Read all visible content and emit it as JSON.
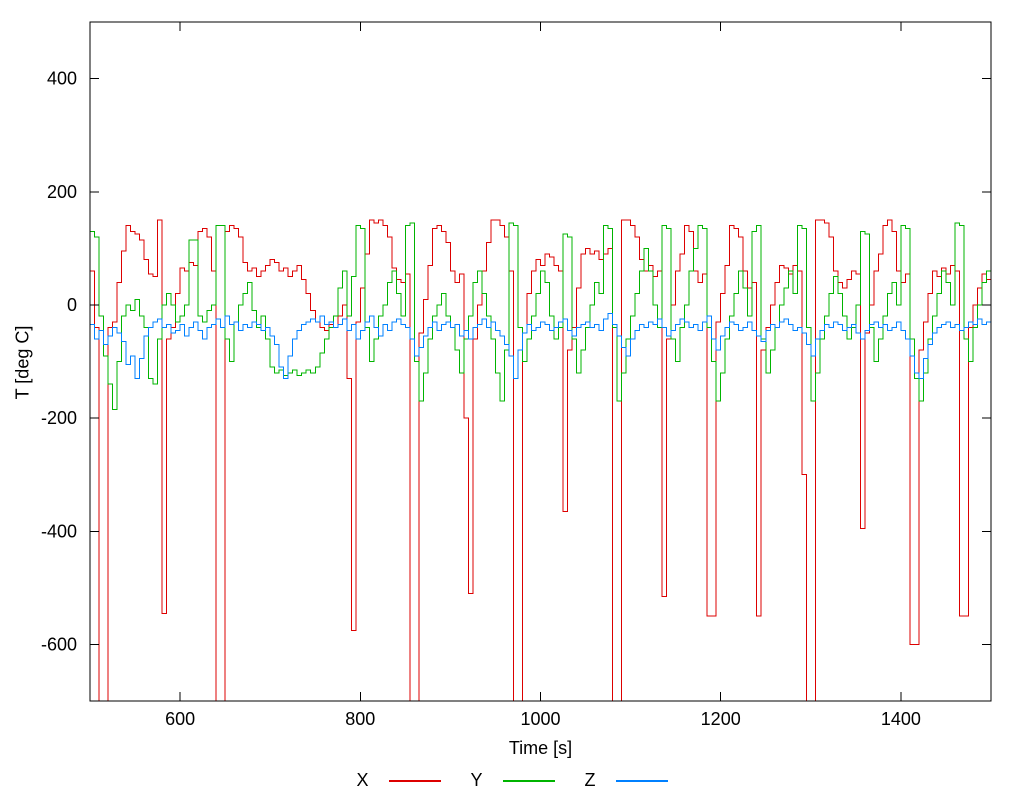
{
  "window": {
    "background": "#ffffff"
  },
  "chart_data": {
    "type": "line",
    "line_style": "steps",
    "title": "",
    "xlabel": "Time [s]",
    "ylabel": "T [deg C]",
    "xlim": [
      500,
      1500
    ],
    "ylim": [
      -700,
      500
    ],
    "xticks": [
      600,
      800,
      1000,
      1200,
      1400
    ],
    "yticks": [
      -600,
      -400,
      -200,
      0,
      200,
      400
    ],
    "grid": false,
    "legend_position": "bottom-center",
    "axis_color": "#000000",
    "text_color": "#000000",
    "clip_note": "values of -750 represent spikes clipped below the plot bottom",
    "series": [
      {
        "name": "X",
        "color": "#dd0000",
        "t0": 500,
        "dt": 5,
        "values": [
          60,
          -40,
          -750,
          -750,
          -40,
          -30,
          40,
          95,
          140,
          130,
          125,
          115,
          80,
          55,
          50,
          150,
          -545,
          -60,
          -40,
          20,
          65,
          60,
          75,
          70,
          130,
          135,
          120,
          60,
          -750,
          -750,
          130,
          140,
          135,
          120,
          75,
          60,
          65,
          50,
          60,
          70,
          80,
          75,
          60,
          65,
          50,
          60,
          70,
          45,
          20,
          -10,
          -30,
          -40,
          -45,
          -35,
          -40,
          -20,
          0,
          -130,
          -575,
          -30,
          30,
          90,
          150,
          145,
          150,
          140,
          120,
          65,
          45,
          40,
          55,
          -750,
          -750,
          -50,
          10,
          70,
          135,
          140,
          130,
          110,
          60,
          40,
          55,
          -200,
          -510,
          -60,
          0,
          60,
          110,
          150,
          150,
          140,
          120,
          60,
          -750,
          -750,
          -50,
          20,
          60,
          80,
          70,
          90,
          85,
          70,
          60,
          -365,
          -80,
          -40,
          30,
          90,
          100,
          90,
          95,
          80,
          90,
          100,
          -750,
          -750,
          150,
          150,
          140,
          120,
          80,
          60,
          70,
          50,
          60,
          -515,
          -60,
          0,
          60,
          90,
          140,
          130,
          60,
          40,
          55,
          -550,
          -550,
          -30,
          20,
          70,
          140,
          135,
          120,
          60,
          30,
          40,
          -550,
          -80,
          -40,
          0,
          40,
          70,
          65,
          55,
          70,
          60,
          -300,
          -750,
          -750,
          150,
          150,
          145,
          120,
          60,
          40,
          30,
          45,
          60,
          55,
          -395,
          -50,
          0,
          60,
          90,
          140,
          150,
          130,
          60,
          40,
          55,
          -600,
          -600,
          -80,
          -30,
          20,
          60,
          50,
          65,
          55,
          70,
          60,
          -550,
          -550,
          -40,
          0,
          30,
          55,
          45,
          65
        ]
      },
      {
        "name": "Y",
        "color": "#00b400",
        "t0": 500,
        "dt": 5,
        "values": [
          130,
          120,
          -20,
          -90,
          -140,
          -185,
          -100,
          -20,
          0,
          -10,
          10,
          -20,
          -40,
          -130,
          -140,
          -60,
          0,
          20,
          0,
          -30,
          -20,
          0,
          115,
          115,
          -20,
          -30,
          -10,
          0,
          140,
          140,
          -60,
          -100,
          -30,
          0,
          20,
          40,
          -10,
          -40,
          -20,
          -60,
          -110,
          -120,
          -115,
          -125,
          -120,
          -115,
          -125,
          -120,
          -115,
          -120,
          -110,
          -85,
          -60,
          -40,
          -20,
          30,
          60,
          -20,
          50,
          140,
          135,
          -40,
          -100,
          -60,
          -20,
          0,
          40,
          60,
          20,
          -20,
          140,
          145,
          -100,
          -170,
          -120,
          -60,
          -20,
          0,
          20,
          -20,
          -40,
          -80,
          -120,
          -60,
          -20,
          40,
          60,
          20,
          -20,
          -60,
          -120,
          -170,
          -80,
          145,
          140,
          -40,
          -100,
          -60,
          -20,
          20,
          60,
          40,
          -20,
          -60,
          -40,
          125,
          120,
          -60,
          -120,
          -80,
          -40,
          0,
          40,
          20,
          140,
          135,
          -40,
          -170,
          -120,
          -60,
          -20,
          20,
          60,
          100,
          60,
          0,
          -40,
          140,
          135,
          -60,
          -100,
          -40,
          0,
          60,
          100,
          140,
          135,
          -40,
          -100,
          -170,
          -120,
          -60,
          -20,
          20,
          60,
          30,
          -20,
          130,
          140,
          -60,
          -120,
          -80,
          -40,
          0,
          30,
          60,
          20,
          140,
          135,
          -40,
          -170,
          -120,
          -60,
          -20,
          20,
          50,
          20,
          -20,
          -60,
          -40,
          0,
          130,
          125,
          -40,
          -100,
          -60,
          -20,
          20,
          40,
          0,
          140,
          135,
          -60,
          -130,
          -170,
          -120,
          -60,
          -20,
          20,
          60,
          40,
          0,
          145,
          140,
          -60,
          -100,
          -40,
          0,
          40,
          60,
          70
        ]
      },
      {
        "name": "Z",
        "color": "#0080ff",
        "t0": 500,
        "dt": 5,
        "values": [
          -35,
          -60,
          -45,
          -70,
          -55,
          -40,
          -50,
          -65,
          -105,
          -90,
          -130,
          -95,
          -55,
          -40,
          -30,
          -25,
          -40,
          -35,
          -50,
          -45,
          -35,
          -55,
          -40,
          -30,
          -45,
          -60,
          -40,
          -35,
          -25,
          -40,
          -20,
          -35,
          -30,
          -45,
          -35,
          -40,
          -30,
          -35,
          -45,
          -40,
          -55,
          -70,
          -110,
          -130,
          -90,
          -60,
          -45,
          -35,
          -30,
          -25,
          -30,
          -20,
          -35,
          -30,
          -40,
          -35,
          -25,
          -45,
          -35,
          -60,
          -45,
          -30,
          -20,
          -40,
          -55,
          -35,
          -45,
          -30,
          -25,
          -35,
          -40,
          -60,
          -90,
          -75,
          -55,
          -40,
          -30,
          -45,
          -35,
          -30,
          -40,
          -35,
          -55,
          -45,
          -60,
          -40,
          -35,
          -25,
          -40,
          -30,
          -45,
          -55,
          -70,
          -90,
          -130,
          -80,
          -50,
          -35,
          -45,
          -40,
          -30,
          -35,
          -45,
          -40,
          -30,
          -25,
          -45,
          -55,
          -40,
          -35,
          -30,
          -40,
          -35,
          -45,
          -25,
          -15,
          -35,
          -55,
          -75,
          -90,
          -60,
          -45,
          -35,
          -40,
          -30,
          -35,
          -25,
          -40,
          -55,
          -45,
          -35,
          -25,
          -30,
          -40,
          -35,
          -45,
          -30,
          -20,
          -60,
          -80,
          -55,
          -40,
          -30,
          -35,
          -45,
          -40,
          -30,
          -45,
          -55,
          -65,
          -45,
          -35,
          -40,
          -30,
          -25,
          -35,
          -45,
          -40,
          -50,
          -70,
          -90,
          -60,
          -45,
          -35,
          -40,
          -30,
          -35,
          -45,
          -40,
          -35,
          -50,
          -60,
          -45,
          -35,
          -30,
          -40,
          -35,
          -45,
          -40,
          -30,
          -45,
          -60,
          -90,
          -120,
          -130,
          -95,
          -70,
          -50,
          -40,
          -35,
          -30,
          -40,
          -35,
          -45,
          -40,
          -30,
          -35,
          -25,
          -35,
          -30,
          -20
        ]
      }
    ]
  }
}
